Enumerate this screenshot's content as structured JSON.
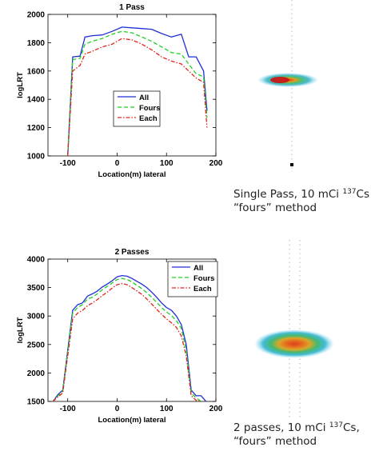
{
  "chart_data": [
    {
      "type": "line",
      "title": "1 Pass",
      "xlabel": "Location(m) lateral",
      "ylabel": "logLRT",
      "xlim": [
        -140,
        200
      ],
      "ylim": [
        1000,
        2000
      ],
      "xticks": [
        -100,
        0,
        100,
        200
      ],
      "yticks": [
        1000,
        1200,
        1400,
        1600,
        1800,
        2000
      ],
      "legend_position": "center-left",
      "series": [
        {
          "name": "All",
          "color": "#1f2fd6",
          "dash": "",
          "x": [
            -100,
            -90,
            -75,
            -65,
            -50,
            -30,
            -10,
            10,
            30,
            50,
            70,
            90,
            110,
            130,
            145,
            160,
            175,
            182
          ],
          "y": [
            1000,
            1700,
            1705,
            1840,
            1850,
            1855,
            1880,
            1910,
            1905,
            1900,
            1895,
            1865,
            1840,
            1860,
            1700,
            1700,
            1600,
            1320
          ]
        },
        {
          "name": "Fours",
          "color": "#1fd01f",
          "dash": "5,3",
          "x": [
            -100,
            -90,
            -75,
            -65,
            -50,
            -30,
            -10,
            10,
            30,
            50,
            70,
            90,
            110,
            130,
            145,
            160,
            175,
            182
          ],
          "y": [
            1000,
            1680,
            1690,
            1790,
            1810,
            1830,
            1860,
            1880,
            1870,
            1840,
            1810,
            1770,
            1730,
            1720,
            1650,
            1580,
            1560,
            1270
          ]
        },
        {
          "name": "Each",
          "color": "#e0241c",
          "dash": "5,2,1.5,2",
          "x": [
            -100,
            -90,
            -75,
            -65,
            -50,
            -30,
            -10,
            10,
            30,
            50,
            70,
            90,
            110,
            130,
            145,
            160,
            175,
            182
          ],
          "y": [
            1000,
            1600,
            1640,
            1720,
            1740,
            1770,
            1790,
            1830,
            1820,
            1790,
            1750,
            1700,
            1670,
            1650,
            1600,
            1550,
            1520,
            1200
          ]
        }
      ]
    },
    {
      "type": "line",
      "title": "2 Passes",
      "xlabel": "Location(m) lateral",
      "ylabel": "logLRT",
      "xlim": [
        -140,
        200
      ],
      "ylim": [
        1500,
        4000
      ],
      "xticks": [
        -100,
        0,
        100,
        200
      ],
      "yticks": [
        1500,
        2000,
        2500,
        3000,
        3500,
        4000
      ],
      "legend_position": "top-right",
      "series": [
        {
          "name": "All",
          "color": "#1f2fd6",
          "dash": "",
          "x": [
            -130,
            -120,
            -110,
            -100,
            -90,
            -80,
            -70,
            -60,
            -50,
            -40,
            -30,
            -20,
            -10,
            0,
            10,
            20,
            30,
            40,
            50,
            60,
            70,
            80,
            90,
            100,
            110,
            120,
            130,
            140,
            150,
            160,
            170,
            180
          ],
          "y": [
            1500,
            1620,
            1700,
            2400,
            3100,
            3200,
            3230,
            3350,
            3390,
            3440,
            3510,
            3560,
            3620,
            3690,
            3710,
            3700,
            3660,
            3610,
            3560,
            3500,
            3420,
            3330,
            3230,
            3150,
            3100,
            3000,
            2850,
            2500,
            1700,
            1600,
            1600,
            1500
          ]
        },
        {
          "name": "Fours",
          "color": "#1fd01f",
          "dash": "5,3",
          "x": [
            -130,
            -120,
            -110,
            -100,
            -90,
            -80,
            -70,
            -60,
            -50,
            -40,
            -30,
            -20,
            -10,
            0,
            10,
            20,
            30,
            40,
            50,
            60,
            70,
            80,
            90,
            100,
            110,
            120,
            130,
            140,
            150,
            160,
            170
          ],
          "y": [
            1500,
            1600,
            1680,
            2380,
            3050,
            3150,
            3200,
            3300,
            3330,
            3390,
            3460,
            3520,
            3580,
            3640,
            3660,
            3640,
            3600,
            3540,
            3480,
            3410,
            3330,
            3240,
            3150,
            3070,
            3010,
            2920,
            2780,
            2400,
            1650,
            1560,
            1500
          ]
        },
        {
          "name": "Each",
          "color": "#e0241c",
          "dash": "5,2,1.5,2",
          "x": [
            -130,
            -120,
            -110,
            -100,
            -90,
            -80,
            -70,
            -60,
            -50,
            -40,
            -30,
            -20,
            -10,
            0,
            10,
            20,
            30,
            40,
            50,
            60,
            70,
            80,
            90,
            100,
            110,
            120,
            130,
            140,
            150,
            160,
            170
          ],
          "y": [
            1500,
            1580,
            1650,
            2300,
            2950,
            3050,
            3100,
            3180,
            3230,
            3290,
            3360,
            3420,
            3490,
            3550,
            3570,
            3550,
            3500,
            3440,
            3380,
            3300,
            3210,
            3120,
            3030,
            2950,
            2880,
            2800,
            2650,
            2300,
            1600,
            1520,
            1500
          ]
        }
      ]
    }
  ],
  "captions": [
    {
      "line1_pre": "Single Pass, 10 mCi ",
      "isotope_mass": "137",
      "line1_post": "Cs",
      "line2": "“fours” method"
    },
    {
      "line1_pre": "2 passes, 10 mCi ",
      "isotope_mass": "137",
      "line1_post": "Cs,",
      "line2": "“fours” method"
    }
  ]
}
